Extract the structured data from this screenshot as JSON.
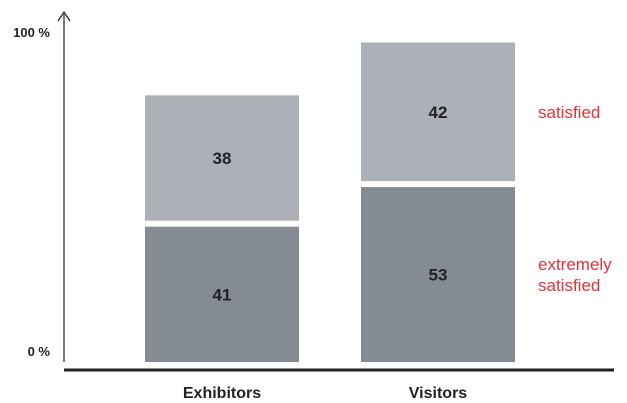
{
  "chart_data": {
    "type": "bar",
    "stacked": true,
    "categories": [
      "Exhibitors",
      "Visitors"
    ],
    "series": [
      {
        "name": "extremely satisfied",
        "values": [
          41,
          53
        ],
        "color": "#848b92"
      },
      {
        "name": "satisfied",
        "values": [
          38,
          42
        ],
        "color": "#abb1b6"
      }
    ],
    "legend_lines": [
      [
        "extremely",
        "satisfied"
      ],
      [
        "satisfied"
      ]
    ],
    "y_tick_labels": [
      "0 %",
      "100 %"
    ],
    "ylim": [
      0,
      100
    ],
    "grid": false,
    "legend": "right",
    "legend_color": "#e3313a"
  }
}
